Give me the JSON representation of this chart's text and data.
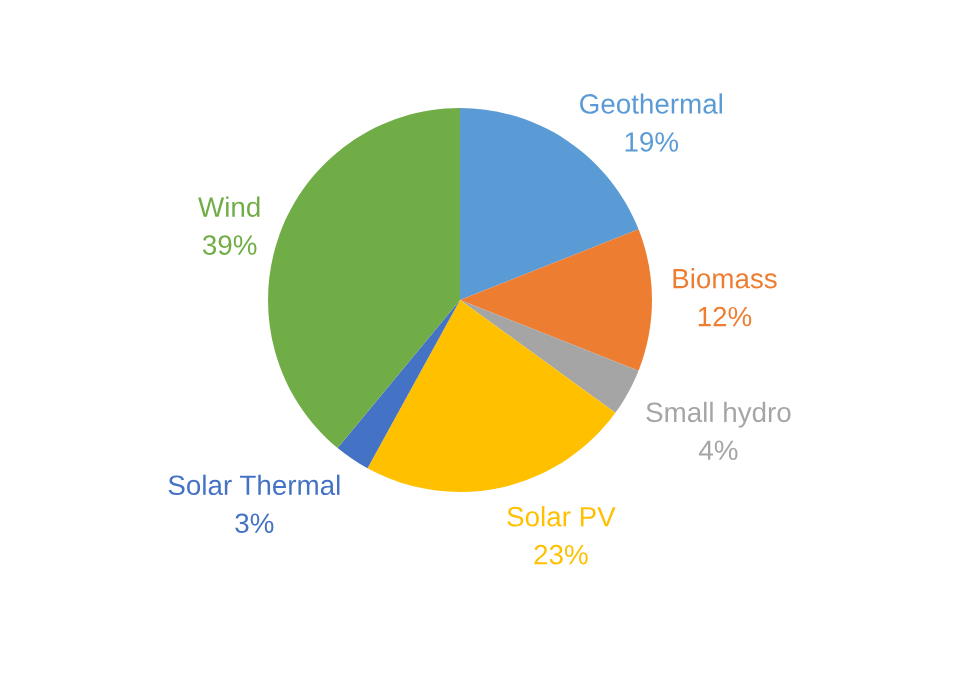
{
  "chart_data": {
    "type": "pie",
    "categories": [
      "Geothermal",
      "Biomass",
      "Small hydro",
      "Solar PV",
      "Solar Thermal",
      "Wind"
    ],
    "values": [
      19,
      12,
      4,
      23,
      3,
      39
    ],
    "value_labels": [
      "19%",
      "12%",
      "4%",
      "23%",
      "3%",
      "39%"
    ],
    "colors": [
      "#5b9bd5",
      "#ed7d31",
      "#a5a5a5",
      "#ffc000",
      "#4472c4",
      "#70ad47"
    ],
    "legend": false
  }
}
